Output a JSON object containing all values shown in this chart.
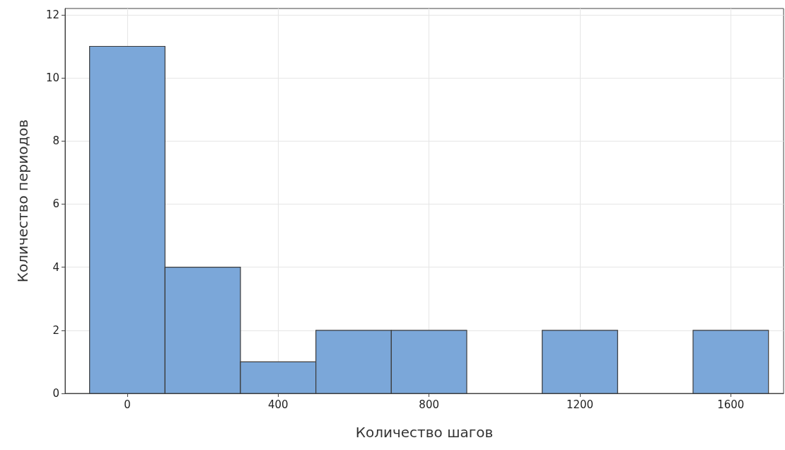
{
  "chart_data": {
    "type": "histogram",
    "xlabel": "Количество шагов",
    "ylabel": "Количество периодов",
    "bins": [
      -100,
      100,
      300,
      500,
      700,
      900,
      1100,
      1300,
      1500,
      1700
    ],
    "values": [
      11,
      4,
      1,
      2,
      2,
      0,
      2,
      0,
      2
    ],
    "color": "#7ba7d9",
    "xlim": [
      -165,
      1740
    ],
    "xticks": [
      0,
      400,
      800,
      1200,
      1600
    ],
    "ylim": [
      0,
      12.2
    ],
    "yticks": [
      0,
      2,
      4,
      6,
      8,
      10,
      12
    ],
    "grid": true
  }
}
